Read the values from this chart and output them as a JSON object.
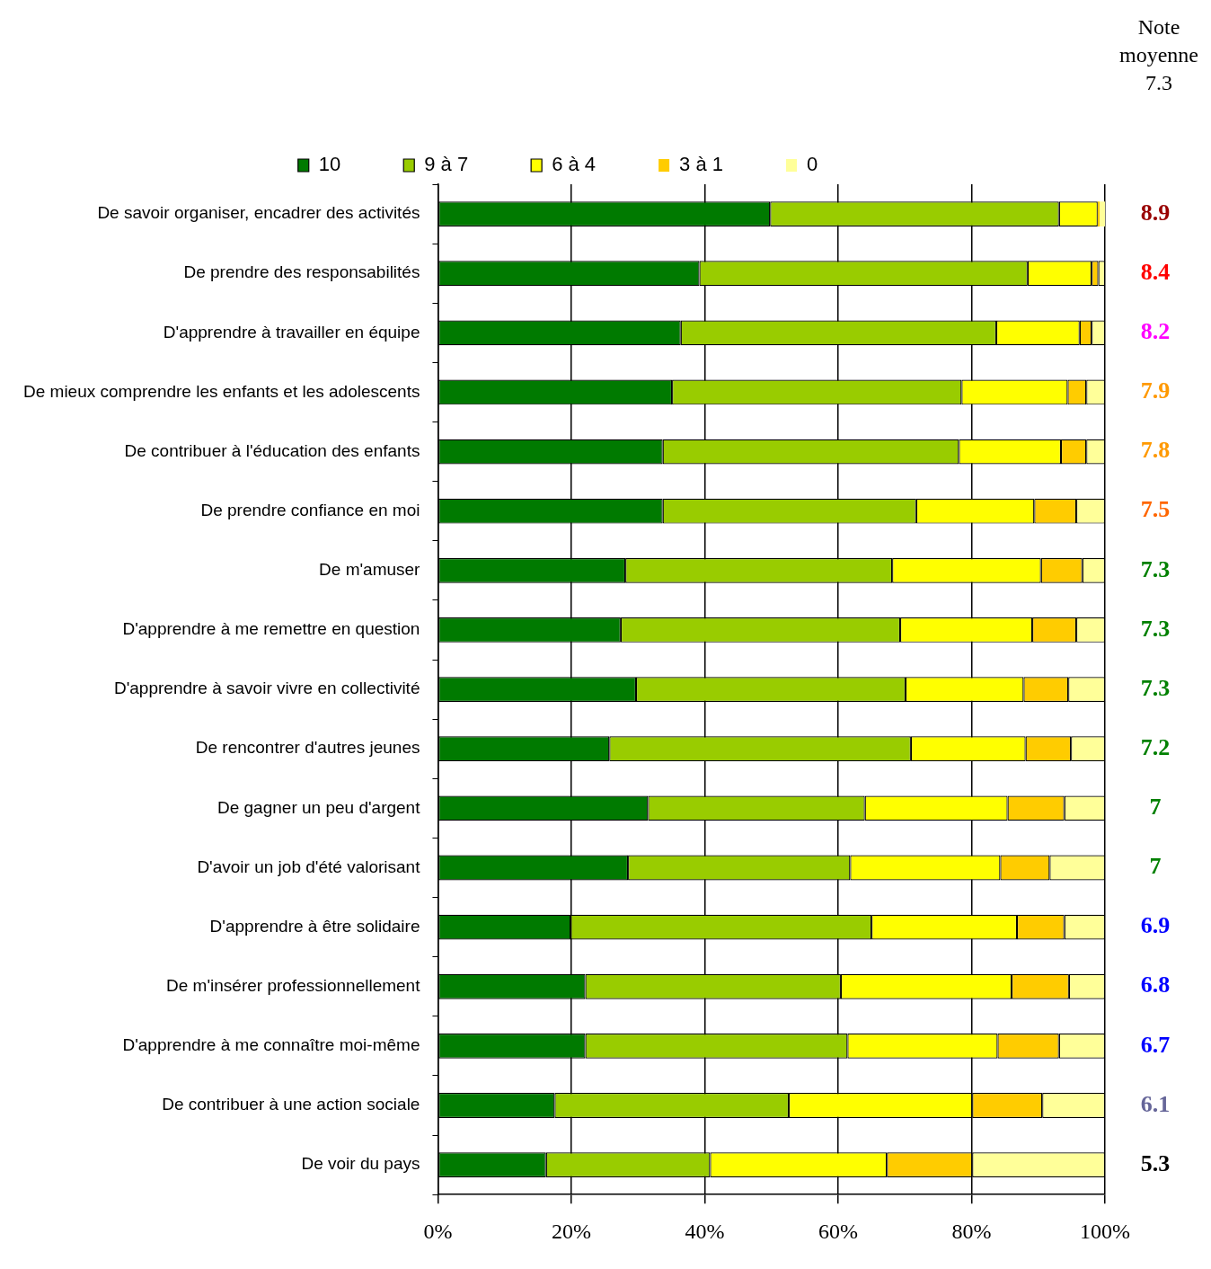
{
  "chart_data": {
    "type": "bar",
    "orientation": "horizontal",
    "stacked": true,
    "categories": [
      "De savoir organiser, encadrer des activités",
      "De prendre des responsabilités",
      "D'apprendre à travailler en équipe",
      "De mieux comprendre les enfants et les adolescents",
      "De contribuer à l'éducation des enfants",
      "De prendre confiance en moi",
      "De m'amuser",
      "D'apprendre à me remettre en question",
      "D'apprendre à savoir vivre en collectivité",
      "De rencontrer d'autres jeunes",
      "De gagner un peu d'argent",
      "D'avoir un job d'été valorisant",
      "D'apprendre à être solidaire",
      "De m'insérer professionnellement",
      "D'apprendre à me connaître moi-même",
      "De contribuer à une action sociale",
      "De voir du pays"
    ],
    "series": [
      {
        "name": "10",
        "color": "#007a00",
        "values": [
          49.8,
          39.2,
          36.4,
          35.1,
          33.7,
          33.7,
          28.1,
          27.4,
          29.7,
          25.7,
          31.5,
          28.5,
          19.9,
          22.1,
          22.1,
          17.5,
          16.2
        ]
      },
      {
        "name": "9 à 7",
        "color": "#99cc00",
        "values": [
          43.3,
          49.2,
          47.3,
          43.4,
          44.4,
          38.0,
          40.0,
          41.9,
          40.4,
          45.2,
          32.5,
          33.3,
          45.1,
          38.3,
          39.3,
          35.1,
          24.6
        ]
      },
      {
        "name": "6 à 4",
        "color": "#ffff00",
        "values": [
          5.8,
          9.6,
          12.5,
          15.9,
          15.3,
          17.7,
          22.3,
          19.8,
          17.7,
          17.2,
          21.4,
          22.5,
          21.8,
          25.6,
          22.5,
          27.5,
          26.5
        ]
      },
      {
        "name": "3 à 1",
        "color": "#ffcc00",
        "values": [
          0.3,
          1.0,
          1.8,
          2.8,
          3.8,
          6.3,
          6.2,
          6.6,
          6.7,
          6.8,
          8.5,
          7.4,
          7.1,
          8.6,
          9.2,
          10.5,
          12.8
        ]
      },
      {
        "name": "0",
        "color": "#ffff99",
        "values": [
          0.8,
          1.0,
          2.0,
          2.8,
          2.8,
          4.3,
          3.4,
          4.3,
          5.5,
          5.1,
          6.1,
          8.3,
          6.1,
          5.4,
          6.9,
          9.4,
          19.9
        ]
      }
    ],
    "xlim": [
      0,
      100
    ],
    "xticks": [
      {
        "value": 0,
        "label": "0%"
      },
      {
        "value": 20,
        "label": "20%"
      },
      {
        "value": 40,
        "label": "40%"
      },
      {
        "value": 60,
        "label": "60%"
      },
      {
        "value": 80,
        "label": "80%"
      },
      {
        "value": 100,
        "label": "100%"
      }
    ],
    "grid": "x",
    "legend": "top",
    "annotations": [
      "Note moyenne",
      "7.3",
      "8.9",
      "8.4",
      "8.2",
      "7.9",
      "7.8",
      "7.5",
      "7.3",
      "7.3",
      "7.3",
      "7.2",
      "7",
      "7",
      "6.9",
      "6.8",
      "6.7",
      "6.1",
      "5.3"
    ]
  }
}
